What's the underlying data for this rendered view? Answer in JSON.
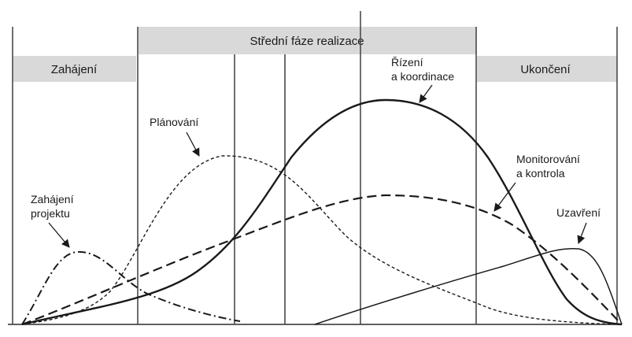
{
  "diagram": {
    "phases": {
      "start": "Zahájení",
      "middle": "Střední fáze realizace",
      "end": "Ukončení"
    },
    "processes": {
      "initiation": {
        "line1": "Zahájení",
        "line2": "projektu",
        "style": "dash-dot"
      },
      "planning": {
        "line1": "Plánování",
        "style": "short-dash"
      },
      "execution": {
        "line1": "Řízení",
        "line2": "a koordinace",
        "style": "solid-thick"
      },
      "monitoring": {
        "line1": "Monitorování",
        "line2": "a kontrola",
        "style": "long-dash"
      },
      "closing": {
        "line1": "Uzavření",
        "style": "solid-thin"
      }
    },
    "colors": {
      "band": "#d9d9d9",
      "lines": "#1a1a1a",
      "background": "#ffffff"
    }
  }
}
